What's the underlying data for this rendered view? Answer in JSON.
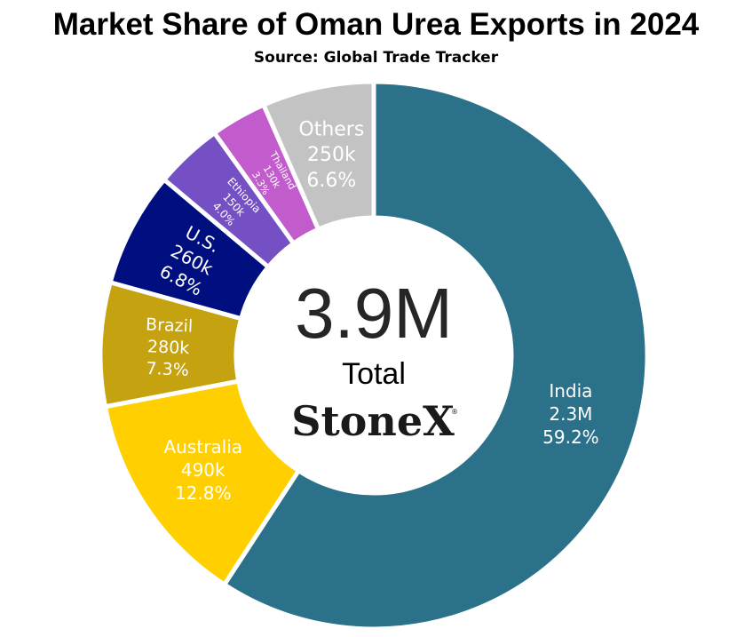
{
  "title": "Market Share of Oman Urea Exports in 2024",
  "subtitle": "Source: Global Trade Tracker",
  "center": {
    "value": "3.9M",
    "caption": "Total"
  },
  "brand": {
    "name": "StoneX",
    "mark": "®"
  },
  "chart_data": {
    "type": "pie",
    "style": "donut",
    "title": "Market Share of Oman Urea Exports in 2024",
    "subtitle": "Source: Global Trade Tracker",
    "total_label": "3.9M",
    "slices": [
      {
        "name": "India",
        "value_label": "2.3M",
        "pct_label": "59.2%",
        "pct": 59.2,
        "color": "#2A7189",
        "text_color": "#FFFFFF",
        "rotate": false,
        "font_size": 20
      },
      {
        "name": "Australia",
        "value_label": "490k",
        "pct_label": "12.8%",
        "pct": 12.8,
        "color": "#FFCF00",
        "text_color": "#FFFFFF",
        "rotate": false,
        "font_size": 20
      },
      {
        "name": "Brazil",
        "value_label": "280k",
        "pct_label": "7.3%",
        "pct": 7.3,
        "color": "#C5A20F",
        "text_color": "#FFFFFF",
        "rotate": true,
        "font_size": 19
      },
      {
        "name": "U.S.",
        "value_label": "260k",
        "pct_label": "6.8%",
        "pct": 6.8,
        "color": "#000F7F",
        "text_color": "#FFFFFF",
        "rotate": true,
        "font_size": 20
      },
      {
        "name": "Ethiopia",
        "value_label": "150k",
        "pct_label": "4.0%",
        "pct": 4.0,
        "color": "#7550C4",
        "text_color": "#FFFFFF",
        "rotate": true,
        "font_size": 12
      },
      {
        "name": "Thailand",
        "value_label": "130k",
        "pct_label": "3.3%",
        "pct": 3.3,
        "color": "#C25BCB",
        "text_color": "#FFFFFF",
        "rotate": true,
        "font_size": 11
      },
      {
        "name": "Others",
        "value_label": "250k",
        "pct_label": "6.6%",
        "pct": 6.6,
        "color": "#C3C3C3",
        "text_color": "#FFFFFF",
        "rotate": false,
        "font_size": 22
      }
    ]
  }
}
